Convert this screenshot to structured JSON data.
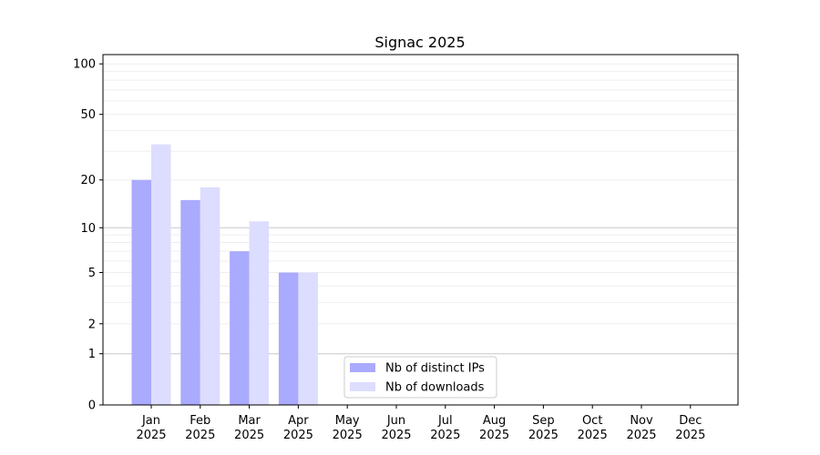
{
  "chart_data": {
    "type": "bar",
    "title": "Signac 2025",
    "xlabel": "",
    "ylabel": "",
    "y_scale": "log(1+y)",
    "ylim": [
      0,
      100
    ],
    "yticks": [
      0,
      1,
      2,
      5,
      10,
      20,
      50,
      100
    ],
    "grid": true,
    "legend_placement": "lower-center",
    "categories": [
      "Jan\n2025",
      "Feb\n2025",
      "Mar\n2025",
      "Apr\n2025",
      "May\n2025",
      "Jun\n2025",
      "Jul\n2025",
      "Aug\n2025",
      "Sep\n2025",
      "Oct\n2025",
      "Nov\n2025",
      "Dec\n2025"
    ],
    "series": [
      {
        "name": "Nb of distinct IPs",
        "color": "#aaaaff",
        "values": [
          20,
          15,
          7,
          5,
          0,
          0,
          0,
          0,
          0,
          0,
          0,
          0
        ]
      },
      {
        "name": "Nb of downloads",
        "color": "#ddddff",
        "values": [
          33,
          18,
          11,
          5,
          0,
          0,
          0,
          0,
          0,
          0,
          0,
          0
        ]
      }
    ]
  }
}
